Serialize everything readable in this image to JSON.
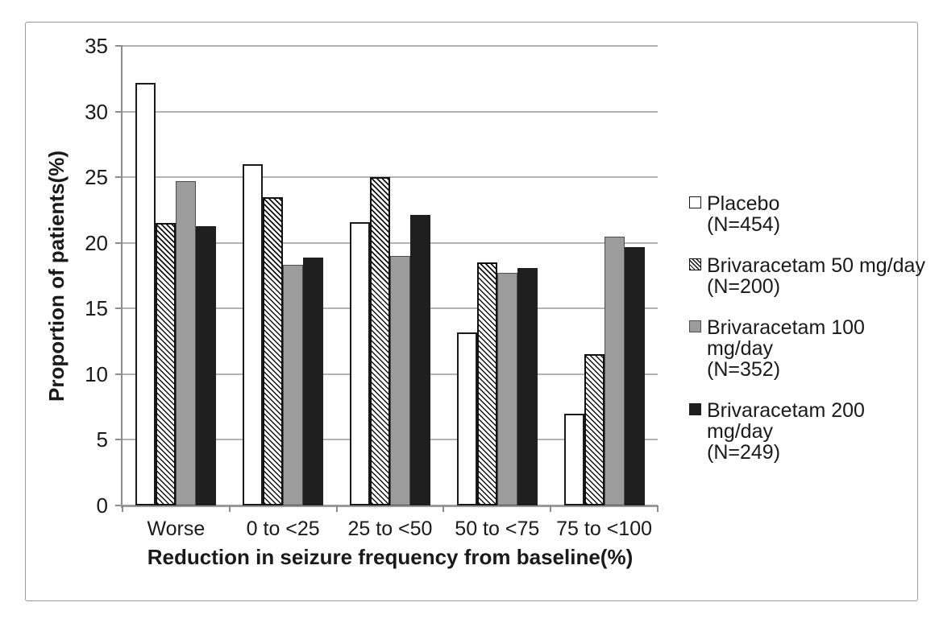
{
  "figure": {
    "background": "#ffffff",
    "border_color": "#999999"
  },
  "chart_data": {
    "type": "bar",
    "title": "",
    "xlabel": "Reduction in seizure frequency from baseline(%)",
    "ylabel": "Proportion of patients(%)",
    "ylim": [
      0,
      35
    ],
    "yticks": [
      0,
      5,
      10,
      15,
      20,
      25,
      30,
      35
    ],
    "grid": true,
    "legend_position": "right",
    "categories": [
      "Worse",
      "0 to <25",
      "25 to <50",
      "50 to <75",
      "75 to <100"
    ],
    "series": [
      {
        "name": "Placebo",
        "n_label": "(N=454)",
        "fill": "white",
        "values": [
          32.2,
          26.0,
          21.6,
          13.2,
          7.0
        ]
      },
      {
        "name": "Brivaracetam 50 mg/day",
        "n_label": "(N=200)",
        "fill": "hatch",
        "values": [
          21.5,
          23.5,
          25.0,
          18.5,
          11.5
        ]
      },
      {
        "name": "Brivaracetam 100 mg/day",
        "n_label": "(N=352)",
        "fill": "gray",
        "values": [
          24.7,
          18.3,
          19.0,
          17.7,
          20.5
        ]
      },
      {
        "name": "Brivaracetam 200 mg/day",
        "n_label": "(N=249)",
        "fill": "black",
        "values": [
          21.3,
          18.9,
          22.1,
          18.1,
          19.7
        ]
      }
    ],
    "colors": {
      "white": "#ffffff",
      "gray": "#9c9c9c",
      "black": "#1f1f1f",
      "hatch_line": "#111111",
      "outline": "#1a1a1a",
      "gridline": "#b3b3b3",
      "axis": "#8c8c8c",
      "text": "#1a1a1a"
    }
  }
}
